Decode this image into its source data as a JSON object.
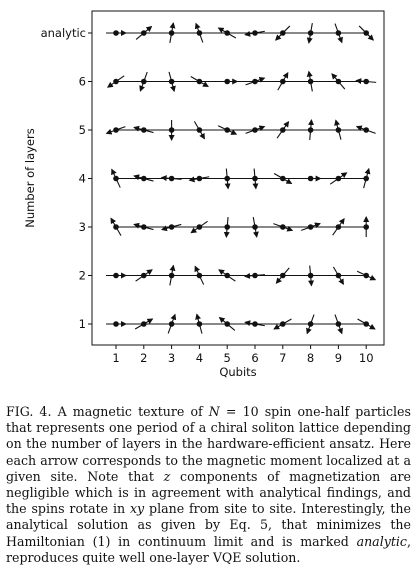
{
  "chart_data": {
    "type": "scatter",
    "xlabel": "Qubits",
    "ylabel": "Number of layers",
    "x_ticks": [
      "1",
      "2",
      "3",
      "4",
      "5",
      "6",
      "7",
      "8",
      "9",
      "10"
    ],
    "rows": [
      {
        "label": "1",
        "angles": [
          0,
          30,
          70,
          105,
          140,
          170,
          210,
          250,
          290,
          330
        ]
      },
      {
        "label": "2",
        "angles": [
          0,
          35,
          80,
          115,
          145,
          185,
          230,
          275,
          300,
          335
        ]
      },
      {
        "label": "3",
        "angles": [
          120,
          165,
          195,
          215,
          265,
          280,
          340,
          20,
          55,
          90
        ]
      },
      {
        "label": "4",
        "angles": [
          115,
          165,
          175,
          190,
          275,
          275,
          330,
          0,
          35,
          75
        ]
      },
      {
        "label": "5",
        "angles": [
          200,
          165,
          270,
          300,
          335,
          20,
          55,
          85,
          105,
          160
        ]
      },
      {
        "label": "6",
        "angles": [
          215,
          250,
          285,
          330,
          0,
          20,
          60,
          100,
          130,
          175
        ]
      },
      {
        "label": "analytic",
        "angles": [
          0,
          40,
          80,
          110,
          150,
          190,
          225,
          260,
          290,
          315
        ]
      }
    ]
  },
  "caption": {
    "fig_label": "FIG. 4.",
    "text_before_N": "A magnetic texture of ",
    "N_symbol": "N",
    "text_after_N": " = 10 spin one-half particles that represents one period of a chiral soliton lattice depending on the number of layers in the hardware-efficient ansatz. Here each arrow corresponds to the magnetic moment localized at a given site. Note that ",
    "z_symbol": "z",
    "text_mid1": " components of magnetization are negligible which is in agreement with analytical findings, and the spins rotate in ",
    "xy_symbol": "xy",
    "text_mid2": " plane from site to site. Interestingly, the analytical solution as given by Eq. 5, that minimizes the Hamiltonian (1) in continuum limit and is marked ",
    "analytic_word": "analytic",
    "text_end": ", reproduces quite well one-layer VQE solution."
  }
}
